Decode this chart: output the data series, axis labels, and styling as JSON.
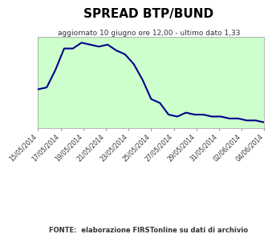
{
  "title": "SPREAD BTP/BUND",
  "subtitle": "aggiornato 10 giugno ore 12,00 - ultimo dato 1,33",
  "fonte": "FONTE:  elaborazione FIRSTonline su dati di archivio",
  "x_labels": [
    "15/05/2014",
    "17/05/2014",
    "19/05/2014",
    "21/05/2014",
    "23/05/2014",
    "25/05/2014",
    "27/05/2014",
    "29/05/2014",
    "31/05/2014",
    "02/06/2014",
    "04/06/2014"
  ],
  "y_values": [
    1.5,
    1.51,
    1.6,
    1.71,
    1.71,
    1.74,
    1.73,
    1.72,
    1.73,
    1.7,
    1.68,
    1.63,
    1.55,
    1.45,
    1.43,
    1.37,
    1.36,
    1.38,
    1.37,
    1.37,
    1.36,
    1.36,
    1.35,
    1.35,
    1.34,
    1.34,
    1.33
  ],
  "line_color": "#00008B",
  "plot_bg_color": "#ccffcc",
  "outer_bg_color": "#ffffff",
  "grid_color": "#aaddaa",
  "title_fontsize": 11,
  "subtitle_fontsize": 6.5,
  "fonte_fontsize": 6.0,
  "tick_fontsize": 5.5,
  "line_width": 1.5
}
